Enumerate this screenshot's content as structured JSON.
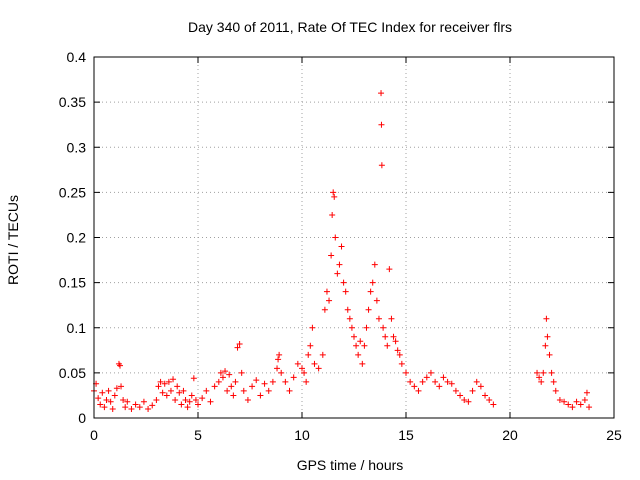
{
  "chart_data": {
    "type": "scatter",
    "title": "Day 340 of 2011, Rate Of TEC Index for receiver flrs",
    "xlabel": "GPS time / hours",
    "ylabel": "ROTI / TECUs",
    "xlim": [
      0,
      25
    ],
    "ylim": [
      0,
      0.4
    ],
    "x_ticks": [
      0,
      5,
      10,
      15,
      20,
      25
    ],
    "x_tick_labels": [
      "0",
      "5",
      "10",
      "15",
      "20",
      "25"
    ],
    "y_ticks": [
      0,
      0.05,
      0.1,
      0.15,
      0.2,
      0.25,
      0.3,
      0.35,
      0.4
    ],
    "y_tick_labels": [
      "0",
      "0.05",
      "0.1",
      "0.15",
      "0.2",
      "0.25",
      "0.3",
      "0.35",
      "0.4"
    ],
    "grid": true,
    "marker": "+",
    "marker_color": "#ff0000",
    "series": [
      {
        "name": "ROTI",
        "points": [
          [
            0.0,
            0.03
          ],
          [
            0.1,
            0.038
          ],
          [
            0.2,
            0.022
          ],
          [
            0.3,
            0.015
          ],
          [
            0.4,
            0.028
          ],
          [
            0.5,
            0.012
          ],
          [
            0.6,
            0.02
          ],
          [
            0.7,
            0.03
          ],
          [
            0.8,
            0.018
          ],
          [
            0.9,
            0.01
          ],
          [
            1.0,
            0.025
          ],
          [
            1.1,
            0.033
          ],
          [
            1.2,
            0.06
          ],
          [
            1.25,
            0.058
          ],
          [
            1.3,
            0.035
          ],
          [
            1.4,
            0.02
          ],
          [
            1.5,
            0.012
          ],
          [
            1.6,
            0.018
          ],
          [
            1.8,
            0.01
          ],
          [
            2.0,
            0.015
          ],
          [
            2.2,
            0.012
          ],
          [
            2.4,
            0.018
          ],
          [
            2.6,
            0.01
          ],
          [
            2.8,
            0.014
          ],
          [
            3.0,
            0.02
          ],
          [
            3.1,
            0.035
          ],
          [
            3.2,
            0.04
          ],
          [
            3.3,
            0.028
          ],
          [
            3.4,
            0.038
          ],
          [
            3.5,
            0.025
          ],
          [
            3.6,
            0.04
          ],
          [
            3.7,
            0.03
          ],
          [
            3.8,
            0.043
          ],
          [
            3.9,
            0.02
          ],
          [
            4.0,
            0.035
          ],
          [
            4.1,
            0.028
          ],
          [
            4.2,
            0.015
          ],
          [
            4.3,
            0.03
          ],
          [
            4.4,
            0.02
          ],
          [
            4.5,
            0.012
          ],
          [
            4.6,
            0.018
          ],
          [
            4.7,
            0.025
          ],
          [
            4.8,
            0.044
          ],
          [
            4.9,
            0.02
          ],
          [
            5.0,
            0.015
          ],
          [
            5.2,
            0.022
          ],
          [
            5.4,
            0.03
          ],
          [
            5.6,
            0.018
          ],
          [
            5.8,
            0.035
          ],
          [
            6.0,
            0.04
          ],
          [
            6.1,
            0.05
          ],
          [
            6.2,
            0.045
          ],
          [
            6.3,
            0.052
          ],
          [
            6.4,
            0.03
          ],
          [
            6.5,
            0.048
          ],
          [
            6.6,
            0.035
          ],
          [
            6.7,
            0.025
          ],
          [
            6.8,
            0.04
          ],
          [
            6.9,
            0.078
          ],
          [
            7.0,
            0.082
          ],
          [
            7.1,
            0.05
          ],
          [
            7.2,
            0.03
          ],
          [
            7.4,
            0.02
          ],
          [
            7.6,
            0.035
          ],
          [
            7.8,
            0.042
          ],
          [
            8.0,
            0.025
          ],
          [
            8.2,
            0.038
          ],
          [
            8.4,
            0.03
          ],
          [
            8.6,
            0.04
          ],
          [
            8.8,
            0.055
          ],
          [
            8.85,
            0.065
          ],
          [
            8.9,
            0.07
          ],
          [
            9.0,
            0.05
          ],
          [
            9.2,
            0.04
          ],
          [
            9.4,
            0.03
          ],
          [
            9.6,
            0.045
          ],
          [
            9.8,
            0.06
          ],
          [
            10.0,
            0.055
          ],
          [
            10.1,
            0.05
          ],
          [
            10.2,
            0.04
          ],
          [
            10.3,
            0.07
          ],
          [
            10.4,
            0.08
          ],
          [
            10.5,
            0.1
          ],
          [
            10.6,
            0.06
          ],
          [
            10.8,
            0.055
          ],
          [
            11.0,
            0.07
          ],
          [
            11.1,
            0.12
          ],
          [
            11.2,
            0.14
          ],
          [
            11.3,
            0.13
          ],
          [
            11.4,
            0.18
          ],
          [
            11.45,
            0.225
          ],
          [
            11.5,
            0.25
          ],
          [
            11.55,
            0.245
          ],
          [
            11.6,
            0.2
          ],
          [
            11.7,
            0.16
          ],
          [
            11.8,
            0.17
          ],
          [
            11.9,
            0.19
          ],
          [
            12.0,
            0.15
          ],
          [
            12.1,
            0.14
          ],
          [
            12.2,
            0.12
          ],
          [
            12.3,
            0.11
          ],
          [
            12.4,
            0.1
          ],
          [
            12.5,
            0.09
          ],
          [
            12.6,
            0.08
          ],
          [
            12.7,
            0.07
          ],
          [
            12.8,
            0.085
          ],
          [
            12.9,
            0.06
          ],
          [
            13.0,
            0.08
          ],
          [
            13.1,
            0.1
          ],
          [
            13.2,
            0.12
          ],
          [
            13.3,
            0.14
          ],
          [
            13.4,
            0.15
          ],
          [
            13.5,
            0.17
          ],
          [
            13.6,
            0.13
          ],
          [
            13.7,
            0.11
          ],
          [
            13.8,
            0.36
          ],
          [
            13.82,
            0.325
          ],
          [
            13.84,
            0.28
          ],
          [
            13.9,
            0.1
          ],
          [
            14.0,
            0.09
          ],
          [
            14.1,
            0.08
          ],
          [
            14.2,
            0.165
          ],
          [
            14.3,
            0.11
          ],
          [
            14.4,
            0.09
          ],
          [
            14.5,
            0.085
          ],
          [
            14.6,
            0.075
          ],
          [
            14.7,
            0.07
          ],
          [
            14.8,
            0.06
          ],
          [
            15.0,
            0.05
          ],
          [
            15.2,
            0.04
          ],
          [
            15.4,
            0.035
          ],
          [
            15.6,
            0.03
          ],
          [
            15.8,
            0.04
          ],
          [
            16.0,
            0.045
          ],
          [
            16.2,
            0.05
          ],
          [
            16.4,
            0.04
          ],
          [
            16.6,
            0.035
          ],
          [
            16.8,
            0.045
          ],
          [
            17.0,
            0.04
          ],
          [
            17.2,
            0.038
          ],
          [
            17.4,
            0.03
          ],
          [
            17.6,
            0.025
          ],
          [
            17.8,
            0.02
          ],
          [
            18.0,
            0.018
          ],
          [
            18.2,
            0.03
          ],
          [
            18.4,
            0.04
          ],
          [
            18.6,
            0.035
          ],
          [
            18.8,
            0.025
          ],
          [
            19.0,
            0.02
          ],
          [
            19.2,
            0.015
          ],
          [
            21.3,
            0.05
          ],
          [
            21.4,
            0.045
          ],
          [
            21.5,
            0.04
          ],
          [
            21.6,
            0.05
          ],
          [
            21.7,
            0.08
          ],
          [
            21.75,
            0.11
          ],
          [
            21.8,
            0.09
          ],
          [
            21.9,
            0.07
          ],
          [
            22.0,
            0.05
          ],
          [
            22.1,
            0.04
          ],
          [
            22.2,
            0.03
          ],
          [
            22.4,
            0.02
          ],
          [
            22.6,
            0.018
          ],
          [
            22.8,
            0.015
          ],
          [
            23.0,
            0.012
          ],
          [
            23.2,
            0.018
          ],
          [
            23.4,
            0.015
          ],
          [
            23.6,
            0.02
          ],
          [
            23.7,
            0.028
          ],
          [
            23.8,
            0.012
          ]
        ]
      }
    ]
  }
}
